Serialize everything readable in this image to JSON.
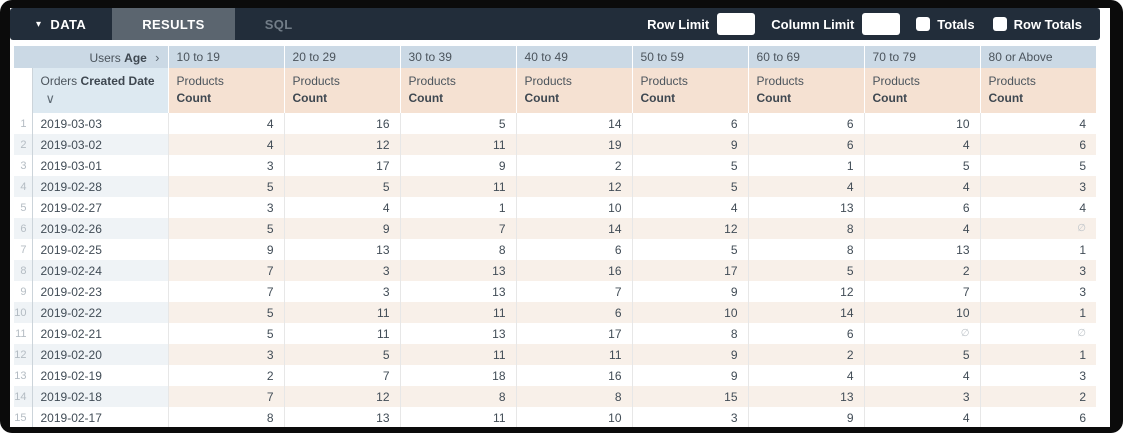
{
  "toolbar": {
    "caret_icon": "▾",
    "data_tab": "DATA",
    "results_tab": "RESULTS",
    "sql_tab": "SQL",
    "row_limit_label": "Row Limit",
    "row_limit_value": "",
    "column_limit_label": "Column Limit",
    "column_limit_value": "",
    "totals_label": "Totals",
    "totals_checked": false,
    "row_totals_label": "Row Totals",
    "row_totals_checked": false,
    "colors": {
      "bar_bg": "#222d3a",
      "active_tab_bg": "#5b656f",
      "inactive_tab_text": "#727d88"
    }
  },
  "table": {
    "corner_header": {
      "regular": "Users",
      "bold": "Age",
      "chevron": "›"
    },
    "row_dimension_header": {
      "regular": "Orders",
      "bold": "Created Date",
      "chevron": "∨"
    },
    "measure_header": {
      "regular": "Products",
      "bold": "Count"
    },
    "age_buckets": [
      "10 to 19",
      "20 to 29",
      "30 to 39",
      "40 to 49",
      "50 to 59",
      "60 to 69",
      "70 to 79",
      "80 or Above"
    ],
    "null_symbol": "∅",
    "colors": {
      "pivot_header_bg": "#cbd9e5",
      "dimension_header_bg": "#dde9f1",
      "measure_header_bg": "#f5e1d2",
      "even_row_label_bg": "#eff3f6",
      "even_row_value_bg": "#f8f0e9"
    },
    "rows": [
      {
        "num": "1",
        "date": "2019-03-03",
        "values": [
          "4",
          "16",
          "5",
          "14",
          "6",
          "6",
          "10",
          "4"
        ]
      },
      {
        "num": "2",
        "date": "2019-03-02",
        "values": [
          "4",
          "12",
          "11",
          "19",
          "9",
          "6",
          "4",
          "6"
        ]
      },
      {
        "num": "3",
        "date": "2019-03-01",
        "values": [
          "3",
          "17",
          "9",
          "2",
          "5",
          "1",
          "5",
          "5"
        ]
      },
      {
        "num": "4",
        "date": "2019-02-28",
        "values": [
          "5",
          "5",
          "11",
          "12",
          "5",
          "4",
          "4",
          "3"
        ]
      },
      {
        "num": "5",
        "date": "2019-02-27",
        "values": [
          "3",
          "4",
          "1",
          "10",
          "4",
          "13",
          "6",
          "4"
        ]
      },
      {
        "num": "6",
        "date": "2019-02-26",
        "values": [
          "5",
          "9",
          "7",
          "14",
          "12",
          "8",
          "4",
          "∅"
        ]
      },
      {
        "num": "7",
        "date": "2019-02-25",
        "values": [
          "9",
          "13",
          "8",
          "6",
          "5",
          "8",
          "13",
          "1"
        ]
      },
      {
        "num": "8",
        "date": "2019-02-24",
        "values": [
          "7",
          "3",
          "13",
          "16",
          "17",
          "5",
          "2",
          "3"
        ]
      },
      {
        "num": "9",
        "date": "2019-02-23",
        "values": [
          "7",
          "3",
          "13",
          "7",
          "9",
          "12",
          "7",
          "3"
        ]
      },
      {
        "num": "10",
        "date": "2019-02-22",
        "values": [
          "5",
          "11",
          "11",
          "6",
          "10",
          "14",
          "10",
          "1"
        ]
      },
      {
        "num": "11",
        "date": "2019-02-21",
        "values": [
          "5",
          "11",
          "13",
          "17",
          "8",
          "6",
          "∅",
          "∅"
        ]
      },
      {
        "num": "12",
        "date": "2019-02-20",
        "values": [
          "3",
          "5",
          "11",
          "11",
          "9",
          "2",
          "5",
          "1"
        ]
      },
      {
        "num": "13",
        "date": "2019-02-19",
        "values": [
          "2",
          "7",
          "18",
          "16",
          "9",
          "4",
          "4",
          "3"
        ]
      },
      {
        "num": "14",
        "date": "2019-02-18",
        "values": [
          "7",
          "12",
          "8",
          "8",
          "15",
          "13",
          "3",
          "2"
        ]
      },
      {
        "num": "15",
        "date": "2019-02-17",
        "values": [
          "8",
          "13",
          "11",
          "10",
          "3",
          "9",
          "4",
          "6"
        ]
      }
    ]
  }
}
